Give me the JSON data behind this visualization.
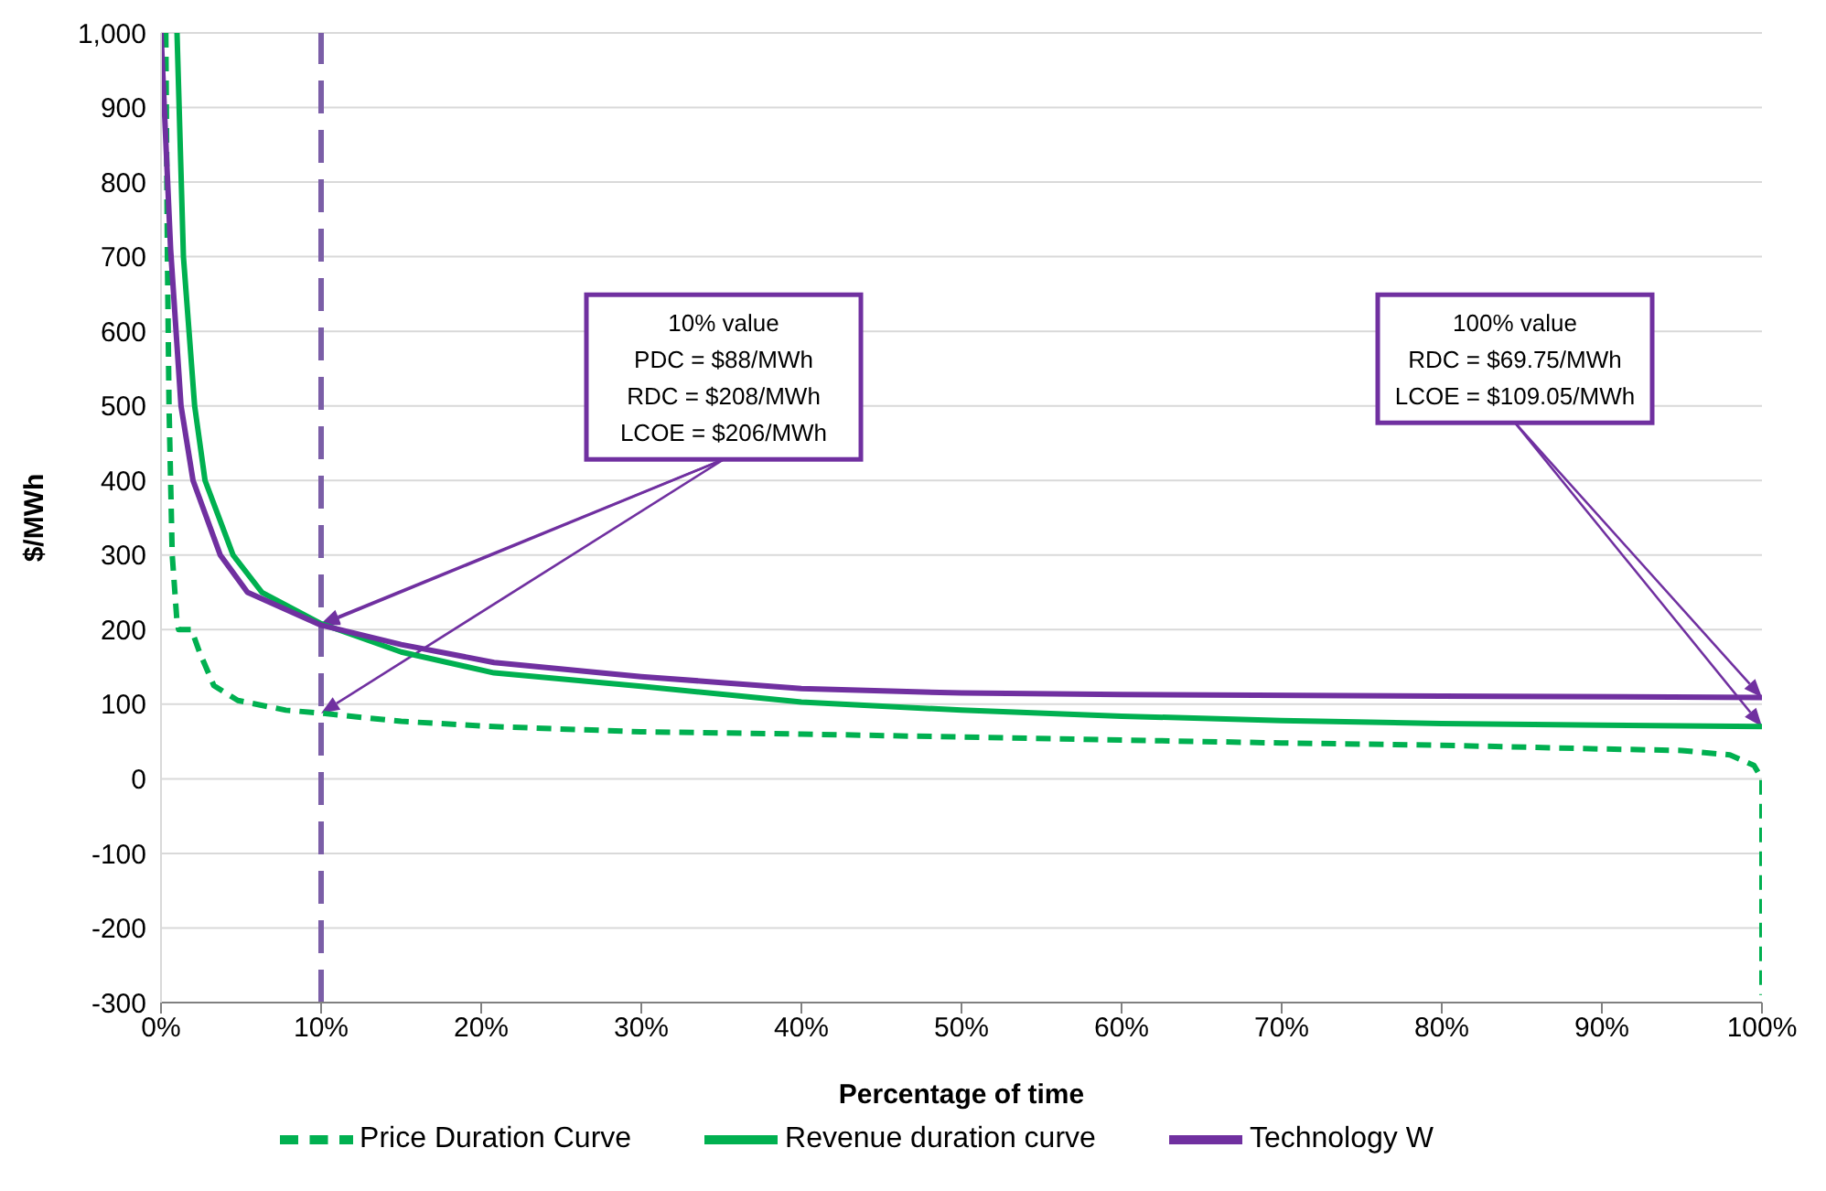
{
  "chart_data": {
    "type": "line",
    "xlabel": "Percentage of time",
    "ylabel": "$/MWh",
    "xlim": [
      0,
      100
    ],
    "xticks": [
      {
        "value": 0,
        "label": "0%"
      },
      {
        "value": 10,
        "label": "10%"
      },
      {
        "value": 20,
        "label": "20%"
      },
      {
        "value": 30,
        "label": "30%"
      },
      {
        "value": 40,
        "label": "40%"
      },
      {
        "value": 50,
        "label": "50%"
      },
      {
        "value": 60,
        "label": "60%"
      },
      {
        "value": 70,
        "label": "70%"
      },
      {
        "value": 80,
        "label": "80%"
      },
      {
        "value": 90,
        "label": "90%"
      },
      {
        "value": 100,
        "label": "100%"
      }
    ],
    "ylim": [
      -300,
      1000
    ],
    "yticks": [
      -300,
      -200,
      -100,
      0,
      100,
      200,
      300,
      400,
      500,
      600,
      700,
      800,
      900,
      {
        "value": 1000,
        "label": "1,000"
      }
    ],
    "grid": "y",
    "legend": "bottom",
    "marker": "none",
    "series": [
      {
        "name": "Price Duration Curve",
        "color": "#00b050",
        "line_style": "dashed",
        "x": [
          0.3,
          0.4,
          0.5,
          0.7,
          1.0,
          1.1,
          1.9,
          2.4,
          3.3,
          4.8,
          7.8,
          10,
          15,
          20.8,
          30,
          40,
          50,
          60,
          70,
          80,
          90,
          95,
          98,
          99.5,
          100,
          100
        ],
        "values": [
          1000,
          700,
          500,
          300,
          210,
          200,
          200,
          170,
          125,
          105,
          92,
          88,
          77,
          70,
          63,
          60,
          56,
          52,
          48,
          45,
          40,
          38,
          32,
          18,
          0,
          -290
        ]
      },
      {
        "name": "Revenue duration curve",
        "color": "#00b050",
        "line_style": "solid",
        "x": [
          1.0,
          1.4,
          2.1,
          2.75,
          4.5,
          6.3,
          10,
          15,
          20.8,
          30,
          40,
          50,
          60,
          70,
          80,
          90,
          100
        ],
        "values": [
          1000,
          700,
          500,
          400,
          300,
          250,
          208,
          170,
          142,
          124,
          103,
          92,
          84,
          78,
          74,
          72,
          70
        ]
      },
      {
        "name": "Technology W",
        "color": "#7030a0",
        "line_style": "solid",
        "x": [
          0,
          0.6,
          1.25,
          2,
          3.7,
          5.4,
          10,
          15,
          20.8,
          30,
          40,
          50,
          60,
          80,
          100
        ],
        "values": [
          1000,
          710,
          500,
          400,
          300,
          250,
          206,
          180,
          156,
          137,
          121,
          115,
          113,
          111,
          109
        ]
      }
    ],
    "ref_lines": [
      {
        "axis": "x",
        "value": 10,
        "label": null,
        "color": "#7b5ea7",
        "line_style": "dashed"
      }
    ],
    "annotations": [
      "10% value\nPDC = $88/MWh\nRDC = $208/MWh\nLCOE = $206/MWh",
      "100% value\nRDC = $69.75/MWh\nLCOE = $109.05/MWh"
    ]
  }
}
